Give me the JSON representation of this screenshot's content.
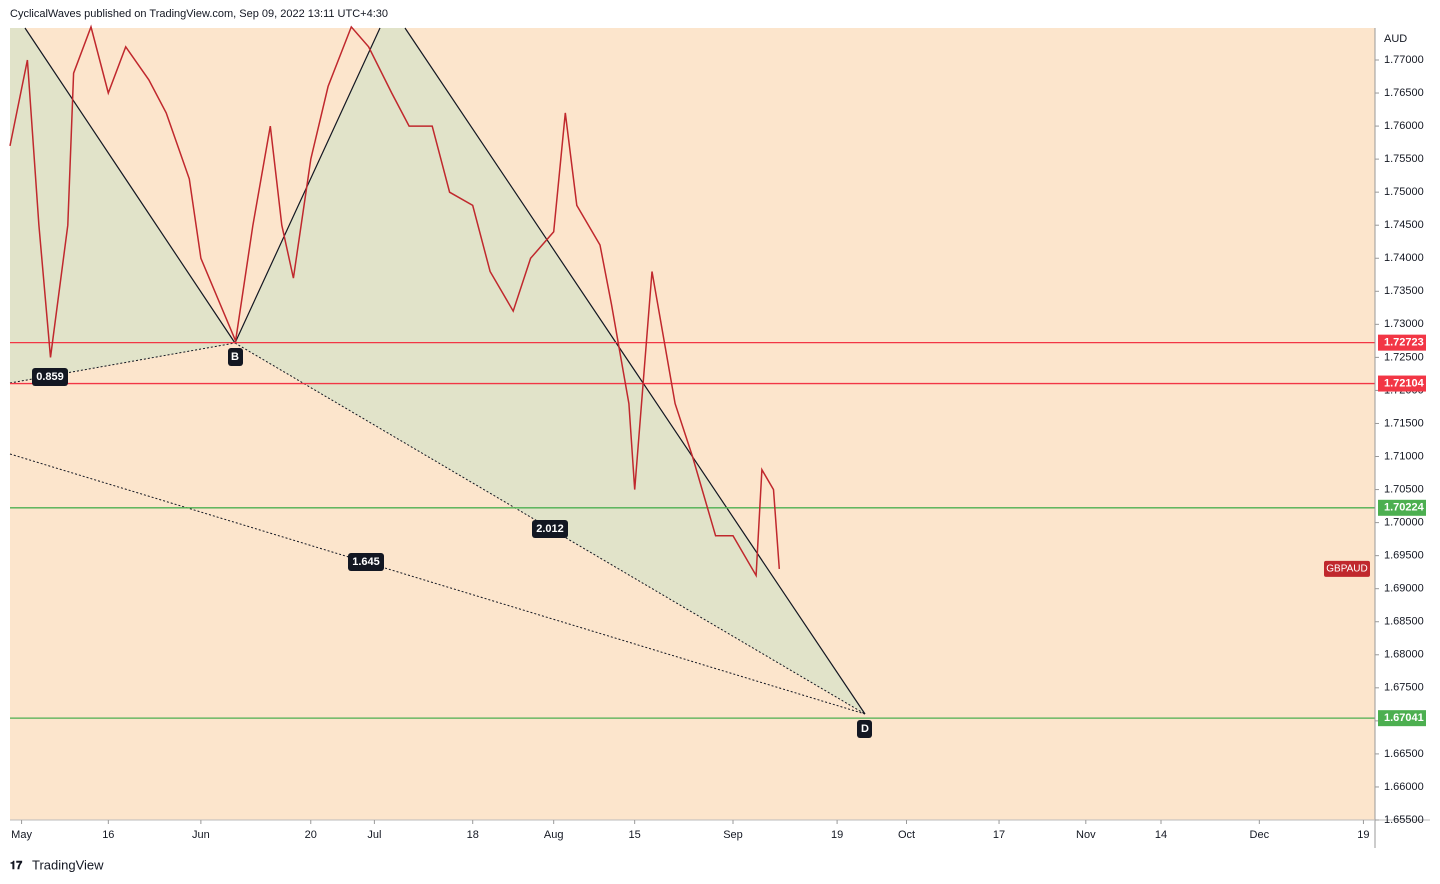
{
  "header": "CyclicalWaves published on TradingView.com, Sep 09, 2022 13:11 UTC+4:30",
  "footer": "TradingView",
  "chart_data": {
    "type": "line",
    "currency": "AUD",
    "symbol": "GBPAUD",
    "series": [
      {
        "name": "GBPAUD",
        "color": "#c0282d",
        "x": [
          "2022-04-29",
          "2022-05-02",
          "2022-05-04",
          "2022-05-06",
          "2022-05-09",
          "2022-05-10",
          "2022-05-13",
          "2022-05-16",
          "2022-05-19",
          "2022-05-23",
          "2022-05-26",
          "2022-05-30",
          "2022-06-01",
          "2022-06-07",
          "2022-06-10",
          "2022-06-13",
          "2022-06-15",
          "2022-06-17",
          "2022-06-20",
          "2022-06-23",
          "2022-06-27",
          "2022-06-30",
          "2022-07-04",
          "2022-07-07",
          "2022-07-11",
          "2022-07-14",
          "2022-07-18",
          "2022-07-21",
          "2022-07-25",
          "2022-07-28",
          "2022-08-01",
          "2022-08-03",
          "2022-08-05",
          "2022-08-09",
          "2022-08-11",
          "2022-08-14",
          "2022-08-15",
          "2022-08-18",
          "2022-08-22",
          "2022-08-25",
          "2022-08-29",
          "2022-09-01",
          "2022-09-05",
          "2022-09-06",
          "2022-09-08",
          "2022-09-09"
        ],
        "values": [
          1.757,
          1.77,
          1.745,
          1.725,
          1.745,
          1.768,
          1.775,
          1.765,
          1.772,
          1.767,
          1.762,
          1.752,
          1.74,
          1.7275,
          1.745,
          1.76,
          1.745,
          1.737,
          1.755,
          1.766,
          1.775,
          1.772,
          1.765,
          1.76,
          1.76,
          1.75,
          1.748,
          1.738,
          1.732,
          1.74,
          1.744,
          1.762,
          1.748,
          1.742,
          1.733,
          1.718,
          1.705,
          1.738,
          1.718,
          1.71,
          1.698,
          1.698,
          1.692,
          1.708,
          1.705,
          1.693
        ]
      }
    ],
    "levels": [
      {
        "value": 1.72723,
        "color": "#f23645"
      },
      {
        "value": 1.72104,
        "color": "#f23645"
      },
      {
        "value": 1.70224,
        "color": "#4caf50"
      },
      {
        "value": 1.67041,
        "color": "#4caf50"
      }
    ],
    "annotations": [
      "0.859",
      "B",
      "2.012",
      "1.645",
      "D"
    ],
    "xlim": [
      "2022-04-29",
      "2022-12-21"
    ],
    "xticks": [
      {
        "value": "2022-05-01",
        "label": "May"
      },
      {
        "value": "2022-05-16",
        "label": "16"
      },
      {
        "value": "2022-06-01",
        "label": "Jun"
      },
      {
        "value": "2022-06-20",
        "label": "20"
      },
      {
        "value": "2022-07-01",
        "label": "Jul"
      },
      {
        "value": "2022-07-18",
        "label": "18"
      },
      {
        "value": "2022-08-01",
        "label": "Aug"
      },
      {
        "value": "2022-08-15",
        "label": "15"
      },
      {
        "value": "2022-09-01",
        "label": "Sep"
      },
      {
        "value": "2022-09-19",
        "label": "19"
      },
      {
        "value": "2022-10-01",
        "label": "Oct"
      },
      {
        "value": "2022-10-17",
        "label": "17"
      },
      {
        "value": "2022-11-01",
        "label": "Nov"
      },
      {
        "value": "2022-11-14",
        "label": "14"
      },
      {
        "value": "2022-12-01",
        "label": "Dec"
      },
      {
        "value": "2022-12-19",
        "label": "19"
      }
    ],
    "ylim": [
      1.655,
      1.77484
    ],
    "yticks": [
      {
        "value": 1.77,
        "label": "1.77000"
      },
      {
        "value": 1.765,
        "label": "1.76500"
      },
      {
        "value": 1.76,
        "label": "1.76000"
      },
      {
        "value": 1.755,
        "label": "1.75500"
      },
      {
        "value": 1.75,
        "label": "1.75000"
      },
      {
        "value": 1.745,
        "label": "1.74500"
      },
      {
        "value": 1.74,
        "label": "1.74000"
      },
      {
        "value": 1.735,
        "label": "1.73500"
      },
      {
        "value": 1.73,
        "label": "1.73000"
      },
      {
        "value": 1.725,
        "label": "1.72500"
      },
      {
        "value": 1.72,
        "label": "1.72000"
      },
      {
        "value": 1.715,
        "label": "1.71500"
      },
      {
        "value": 1.71,
        "label": "1.71000"
      },
      {
        "value": 1.705,
        "label": "1.70500"
      },
      {
        "value": 1.7,
        "label": "1.70000"
      },
      {
        "value": 1.695,
        "label": "1.69500"
      },
      {
        "value": 1.69,
        "label": "1.69000"
      },
      {
        "value": 1.685,
        "label": "1.68500"
      },
      {
        "value": 1.68,
        "label": "1.68000"
      },
      {
        "value": 1.675,
        "label": "1.67500"
      },
      {
        "value": 1.67,
        "label": "1.67000"
      },
      {
        "value": 1.665,
        "label": "1.66500"
      },
      {
        "value": 1.66,
        "label": "1.66000"
      },
      {
        "value": 1.655,
        "label": "1.65500"
      }
    ]
  }
}
